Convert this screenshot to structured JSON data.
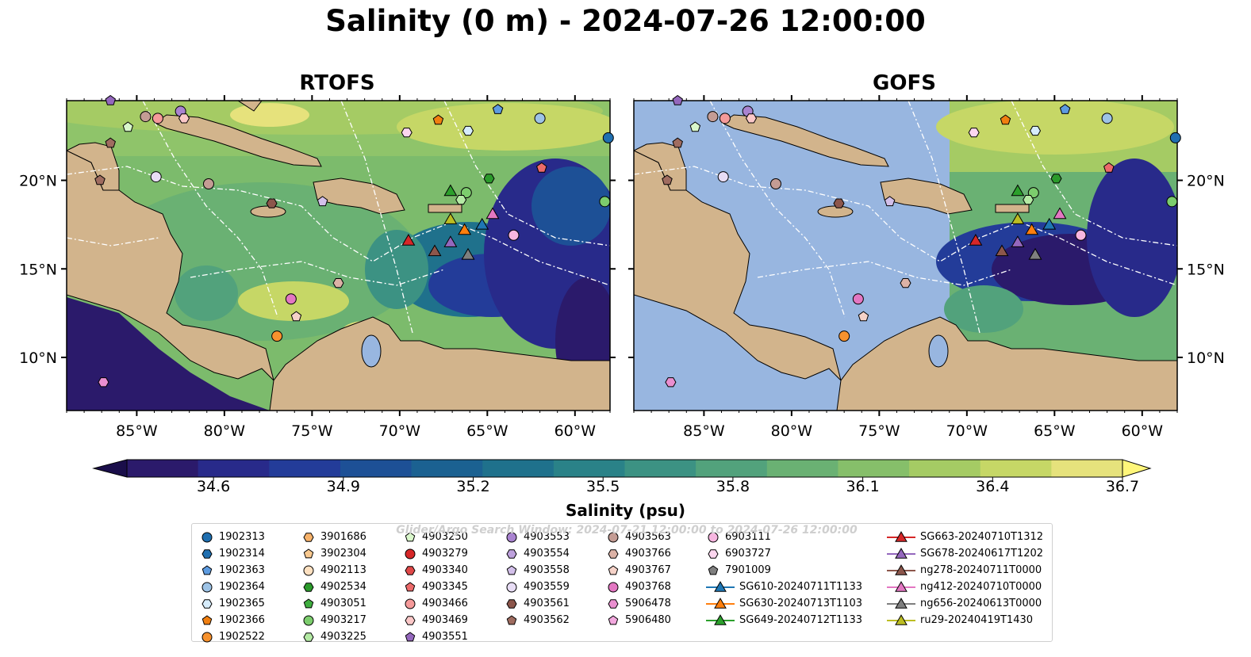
{
  "title": "Salinity (0 m) - 2024-07-26 12:00:00",
  "panels": [
    {
      "title": "RTOFS"
    },
    {
      "title": "GOFS"
    }
  ],
  "axes": {
    "lon_ticks": [
      "85°W",
      "80°W",
      "75°W",
      "70°W",
      "65°W",
      "60°W"
    ],
    "lat_ticks": [
      "20°N",
      "15°N",
      "10°N"
    ],
    "lon_range": [
      -89,
      -58
    ],
    "lat_range": [
      7,
      24.5
    ]
  },
  "colorbar": {
    "label": "Salinity (psu)",
    "ticks": [
      "34.6",
      "34.9",
      "35.2",
      "35.5",
      "35.8",
      "36.1",
      "36.4",
      "36.7"
    ],
    "min": 34.4,
    "max": 36.7,
    "colors": [
      "#2b1a6b",
      "#282a8a",
      "#233c99",
      "#1d5096",
      "#1b6191",
      "#1f718c",
      "#2a8288",
      "#3c9283",
      "#52a27c",
      "#6ab173",
      "#86bf6a",
      "#a5cb64",
      "#c6d766",
      "#e6e27c"
    ]
  },
  "watermark": "Glider/Argo Search Window: 2024-07-21 12:00:00 to 2024-07-26 12:00:00",
  "legend": {
    "columns": [
      [
        {
          "label": "1902313",
          "marker": "circle",
          "color": "#1f6fb0"
        },
        {
          "label": "1902314",
          "marker": "hexagon",
          "color": "#1f6fb0"
        },
        {
          "label": "1902363",
          "marker": "pentagon",
          "color": "#5d9be0"
        },
        {
          "label": "1902364",
          "marker": "circle",
          "color": "#9dc3e6"
        },
        {
          "label": "1902365",
          "marker": "hexagon",
          "color": "#d6ecfb"
        },
        {
          "label": "1902366",
          "marker": "pentagon",
          "color": "#f07f10"
        },
        {
          "label": "1902522",
          "marker": "circle",
          "color": "#f7922e"
        }
      ],
      [
        {
          "label": "3901686",
          "marker": "hexagon",
          "color": "#f7b26a"
        },
        {
          "label": "3902304",
          "marker": "pentagon",
          "color": "#f9c98f"
        },
        {
          "label": "4902113",
          "marker": "circle",
          "color": "#fde0c0"
        },
        {
          "label": "4902534",
          "marker": "hexagon",
          "color": "#2b9a2b"
        },
        {
          "label": "4903051",
          "marker": "pentagon",
          "color": "#3fae3f"
        },
        {
          "label": "4903217",
          "marker": "circle",
          "color": "#7ccd6d"
        },
        {
          "label": "4903225",
          "marker": "hexagon",
          "color": "#b4eaa4"
        }
      ],
      [
        {
          "label": "4903250",
          "marker": "pentagon",
          "color": "#d9f7cb"
        },
        {
          "label": "4903279",
          "marker": "circle",
          "color": "#d62728"
        },
        {
          "label": "4903340",
          "marker": "hexagon",
          "color": "#e04848"
        },
        {
          "label": "4903345",
          "marker": "pentagon",
          "color": "#ec6a6a"
        },
        {
          "label": "4903466",
          "marker": "circle",
          "color": "#f59a9a"
        },
        {
          "label": "4903469",
          "marker": "hexagon",
          "color": "#fbc8c8"
        },
        {
          "label": "4903551",
          "marker": "pentagon",
          "color": "#9467bd"
        }
      ],
      [
        {
          "label": "4903553",
          "marker": "circle",
          "color": "#a983d0"
        },
        {
          "label": "4903554",
          "marker": "hexagon",
          "color": "#bea1dd"
        },
        {
          "label": "4903558",
          "marker": "pentagon",
          "color": "#d3c0ea"
        },
        {
          "label": "4903559",
          "marker": "circle",
          "color": "#e8ddf5"
        },
        {
          "label": "4903561",
          "marker": "hexagon",
          "color": "#8c564b"
        },
        {
          "label": "4903562",
          "marker": "pentagon",
          "color": "#9f6c60"
        }
      ],
      [
        {
          "label": "4903563",
          "marker": "circle",
          "color": "#c49c94"
        },
        {
          "label": "4903766",
          "marker": "hexagon",
          "color": "#dcb2a6"
        },
        {
          "label": "4903767",
          "marker": "pentagon",
          "color": "#f5d2c8"
        },
        {
          "label": "4903768",
          "marker": "circle",
          "color": "#e377c2"
        },
        {
          "label": "5906478",
          "marker": "hexagon",
          "color": "#ea8fd0"
        },
        {
          "label": "5906480",
          "marker": "pentagon",
          "color": "#f2a8de"
        }
      ],
      [
        {
          "label": "6903111",
          "marker": "circle",
          "color": "#f7b6e0"
        },
        {
          "label": "6903727",
          "marker": "hexagon",
          "color": "#fcd6ef"
        },
        {
          "label": "7901009",
          "marker": "pentagon",
          "color": "#7f7f7f"
        },
        {
          "label": "SG610-20240711T1133",
          "marker": "triangle",
          "color": "#1f77b4"
        },
        {
          "label": "SG630-20240713T1103",
          "marker": "triangle",
          "color": "#ff7f0e"
        },
        {
          "label": "SG649-20240712T1133",
          "marker": "triangle",
          "color": "#2ca02c"
        }
      ],
      [
        {
          "label": "SG663-20240710T1312",
          "marker": "triangle",
          "color": "#d62728"
        },
        {
          "label": "SG678-20240617T1202",
          "marker": "triangle",
          "color": "#9467bd"
        },
        {
          "label": "ng278-20240711T0000",
          "marker": "triangle",
          "color": "#8c564b"
        },
        {
          "label": "ng412-20240710T0000",
          "marker": "triangle",
          "color": "#e377c2"
        },
        {
          "label": "ng656-20240613T0000",
          "marker": "triangle",
          "color": "#7f7f7f"
        },
        {
          "label": "ru29-20240419T1430",
          "marker": "triangle",
          "color": "#bcbd22"
        }
      ]
    ]
  },
  "map_colors": {
    "land": "#d2b48c",
    "masked_ocean": "#98b6e0",
    "river": "#9bb7e3"
  }
}
